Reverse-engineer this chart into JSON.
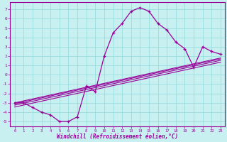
{
  "xlabel": "Windchill (Refroidissement éolien,°C)",
  "bg_color": "#c8f0f0",
  "line_color": "#990099",
  "grid_color": "#99dddd",
  "xlim": [
    -0.5,
    23.5
  ],
  "ylim": [
    -5.5,
    7.8
  ],
  "xticks": [
    0,
    1,
    2,
    3,
    4,
    5,
    6,
    7,
    8,
    9,
    10,
    11,
    12,
    13,
    14,
    15,
    16,
    17,
    18,
    19,
    20,
    21,
    22,
    23
  ],
  "yticks": [
    -5,
    -4,
    -3,
    -2,
    -1,
    0,
    1,
    2,
    3,
    4,
    5,
    6,
    7
  ],
  "main_x": [
    0,
    1,
    2,
    3,
    4,
    5,
    6,
    7,
    8,
    9,
    10,
    11,
    12,
    13,
    14,
    15,
    16,
    17,
    18,
    19,
    20,
    21,
    22,
    23
  ],
  "main_y": [
    -3.0,
    -3.0,
    -3.5,
    -4.0,
    -4.3,
    -5.0,
    -5.0,
    -4.5,
    -1.2,
    -1.8,
    2.0,
    4.5,
    5.5,
    6.8,
    7.2,
    6.8,
    5.5,
    4.8,
    3.5,
    2.8,
    0.8,
    3.0,
    2.5,
    2.2
  ],
  "reg_lines": [
    {
      "x": [
        0,
        23
      ],
      "y": [
        -3.0,
        1.8
      ]
    },
    {
      "x": [
        0,
        23
      ],
      "y": [
        -3.1,
        1.7
      ]
    },
    {
      "x": [
        0,
        23
      ],
      "y": [
        -3.25,
        1.55
      ]
    },
    {
      "x": [
        0,
        23
      ],
      "y": [
        -3.45,
        1.35
      ]
    }
  ]
}
